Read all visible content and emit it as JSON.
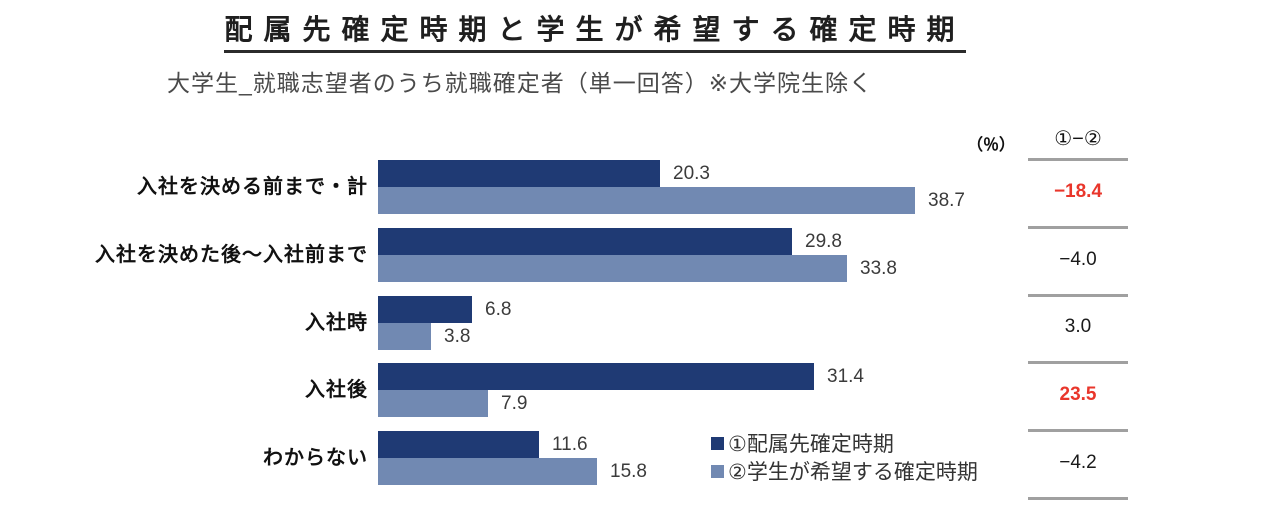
{
  "title": "配属先確定時期と学生が希望する確定時期",
  "subtitle": "大学生_就職志望者のうち就職確定者（単一回答）※大学院生除く",
  "unit_label": "（％）",
  "colors": {
    "series1": "#1F3A74",
    "series2": "#7189B2",
    "diff_highlight": "#E9362B",
    "separator": "#A0A0A0",
    "title_text": "#1F1F1F",
    "subtitle_text": "#4A4A4A",
    "value_text": "#3B3B3B"
  },
  "chart_data": {
    "type": "bar",
    "orientation": "horizontal",
    "unit": "%",
    "xlim": [
      0,
      40
    ],
    "grid": false,
    "legend_position": "bottom-right-inside",
    "categories": [
      "入社を決める前まで・計",
      "入社を決めた後～入社前まで",
      "入社時",
      "入社後",
      "わからない"
    ],
    "series": [
      {
        "name": "①配属先確定時期",
        "color": "#1F3A74",
        "values": [
          20.3,
          29.8,
          6.8,
          31.4,
          11.6
        ]
      },
      {
        "name": "②学生が希望する確定時期",
        "color": "#7189B2",
        "values": [
          38.7,
          33.8,
          3.8,
          7.9,
          15.8
        ]
      }
    ],
    "diff": {
      "header": "①−②",
      "values": [
        -18.4,
        -4.0,
        3.0,
        23.5,
        -4.2
      ],
      "display": [
        "−18.4",
        "−4.0",
        "3.0",
        "23.5",
        "−4.2"
      ],
      "highlight_red": [
        true,
        false,
        false,
        true,
        false
      ]
    }
  }
}
